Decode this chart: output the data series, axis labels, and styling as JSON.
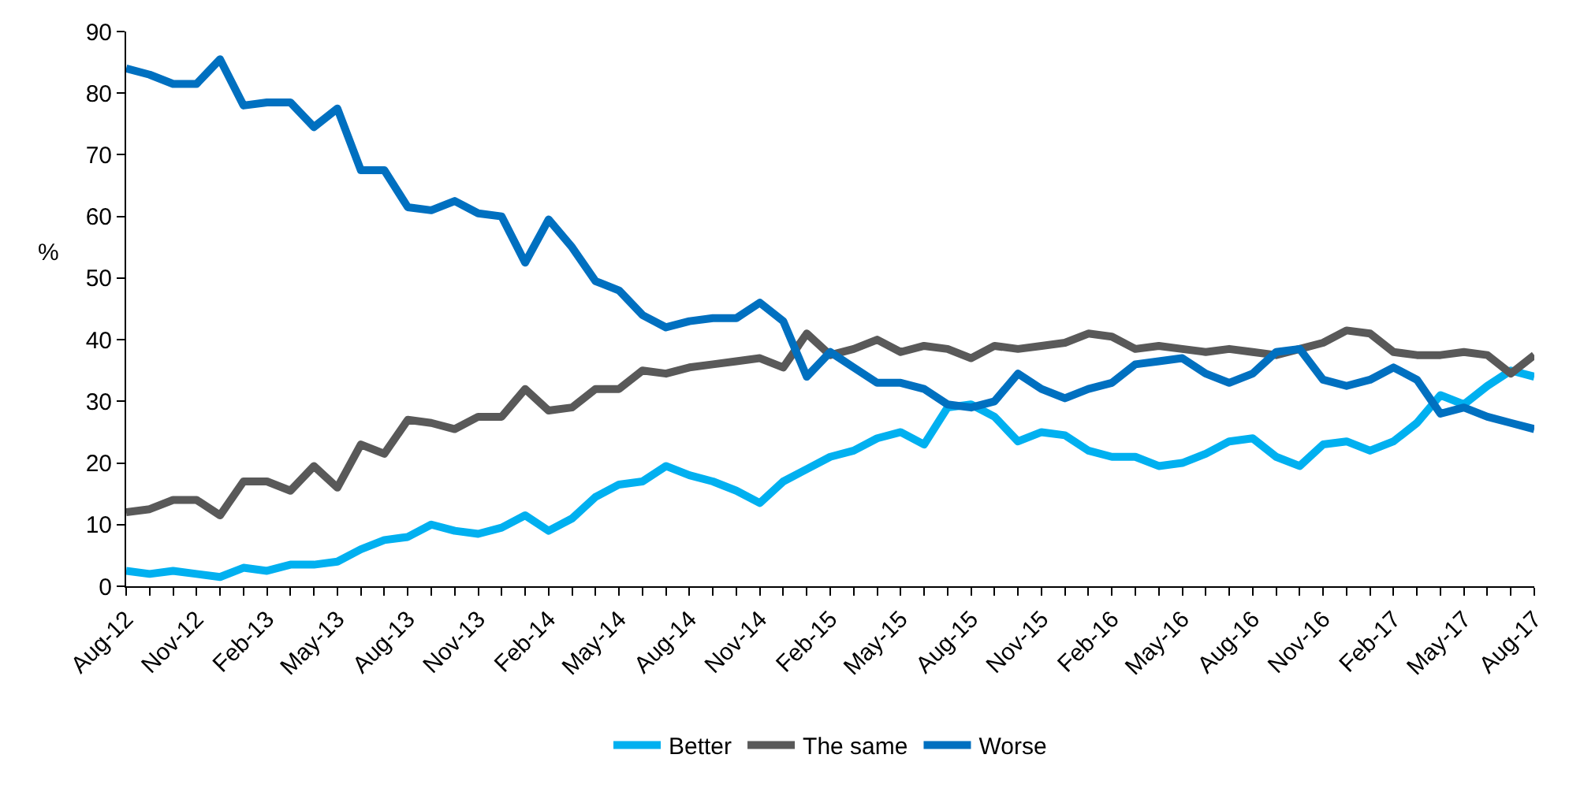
{
  "chart_data": {
    "type": "line",
    "ylabel": "%",
    "categories": [
      "Aug-12",
      null,
      null,
      "Nov-12",
      null,
      null,
      "Feb-13",
      null,
      null,
      "May-13",
      null,
      null,
      "Aug-13",
      null,
      null,
      "Nov-13",
      null,
      null,
      "Feb-14",
      null,
      null,
      "May-14",
      null,
      null,
      "Aug-14",
      null,
      null,
      "Nov-14",
      null,
      null,
      "Feb-15",
      null,
      null,
      "May-15",
      null,
      null,
      "Aug-15",
      null,
      null,
      "Nov-15",
      null,
      null,
      "Feb-16",
      null,
      null,
      "May-16",
      null,
      null,
      "Aug-16",
      null,
      null,
      "Nov-16",
      null,
      null,
      "Feb-17",
      null,
      null,
      "May-17",
      null,
      null,
      "Aug-17"
    ],
    "series": [
      {
        "name": "Better",
        "color": "#00b0f0",
        "values": [
          2.5,
          2,
          2.5,
          2,
          1.5,
          3,
          2.5,
          3.5,
          3.5,
          4,
          6,
          7.5,
          8,
          10,
          9,
          8.5,
          9.5,
          11.5,
          9,
          11,
          14.5,
          16.5,
          17,
          19.5,
          18,
          17,
          15.5,
          13.5,
          17,
          19,
          21,
          22,
          24,
          25,
          23,
          29,
          29.5,
          27.5,
          23.5,
          25,
          24.5,
          22,
          21,
          21,
          19.5,
          20,
          21.5,
          23.5,
          24,
          21,
          19.5,
          23,
          23.5,
          22,
          23.5,
          26.5,
          31,
          29.5,
          32.5,
          35,
          34
        ]
      },
      {
        "name": "The same",
        "color": "#595959",
        "values": [
          12,
          12.5,
          14,
          14,
          11.5,
          17,
          17,
          15.5,
          19.5,
          16,
          23,
          21.5,
          27,
          26.5,
          25.5,
          27.5,
          27.5,
          32,
          28.5,
          29,
          32,
          32,
          35,
          34.5,
          35.5,
          36,
          36.5,
          37,
          35.5,
          41,
          37.5,
          38.5,
          40,
          38,
          39,
          38.5,
          37,
          39,
          38.5,
          39,
          39.5,
          41,
          40.5,
          38.5,
          39,
          38.5,
          38,
          38.5,
          38,
          37.5,
          38.5,
          39.5,
          41.5,
          41,
          38,
          37.5,
          37.5,
          38,
          37.5,
          34.5,
          37.5
        ]
      },
      {
        "name": "Worse",
        "color": "#0070c0",
        "values": [
          84,
          83,
          81.5,
          81.5,
          85.5,
          78,
          78.5,
          78.5,
          74.5,
          77.5,
          67.5,
          67.5,
          61.5,
          61,
          62.5,
          60.5,
          60,
          52.5,
          59.5,
          55,
          49.5,
          48,
          44,
          42,
          43,
          43.5,
          43.5,
          46,
          43,
          34,
          38,
          35.5,
          33,
          33,
          32,
          29.5,
          29,
          30,
          34.5,
          32,
          30.5,
          32,
          33,
          36,
          36.5,
          37,
          34.5,
          33,
          34.5,
          38,
          38.5,
          33.5,
          32.5,
          33.5,
          35.5,
          33.5,
          28,
          29,
          27.5,
          26.5,
          25.5
        ]
      }
    ],
    "ylim": [
      0,
      90
    ],
    "yticks": [
      0,
      10,
      20,
      30,
      40,
      50,
      60,
      70,
      80,
      90
    ],
    "legend": "bottom",
    "marker": "none",
    "line_style": "solid"
  }
}
